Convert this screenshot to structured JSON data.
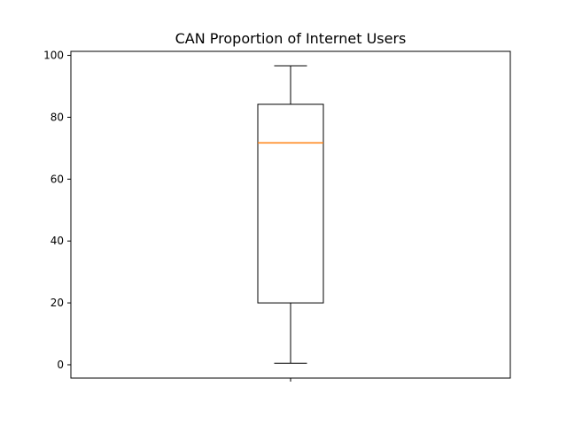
{
  "chart_data": {
    "type": "box",
    "title": "CAN Proportion of Internet Users",
    "xlabel": "",
    "ylabel": "",
    "ylim": [
      -4.3,
      101.3
    ],
    "yticks": [
      0,
      20,
      40,
      60,
      80,
      100
    ],
    "grid": false,
    "series": [
      {
        "whisker_low": 0.5,
        "q1": 20.0,
        "median": 71.7,
        "q3": 84.2,
        "whisker_high": 96.6
      }
    ],
    "colors": {
      "box": "#000000",
      "median": "#ff7f0e",
      "axes": "#000000"
    }
  }
}
